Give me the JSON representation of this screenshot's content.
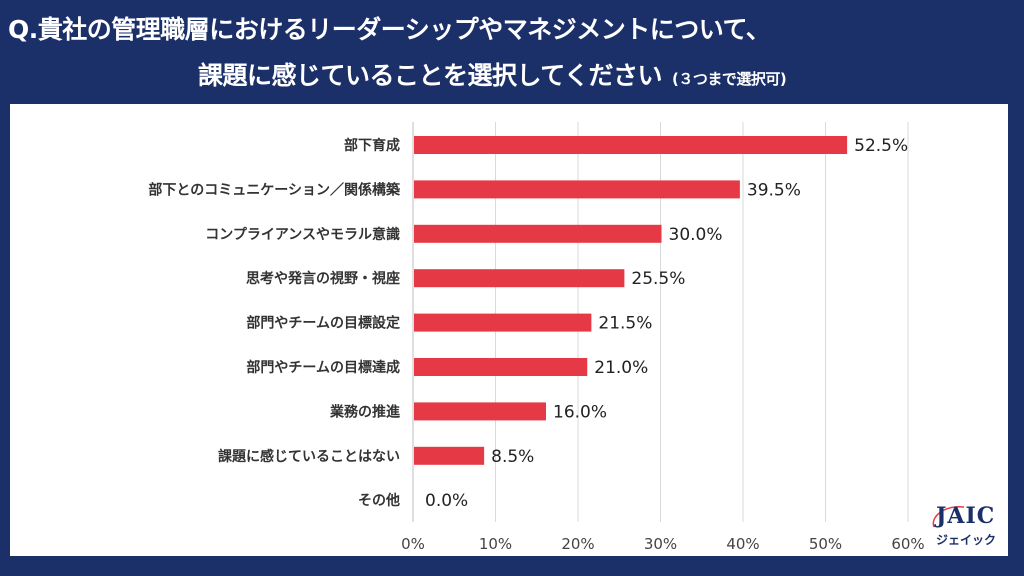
{
  "title_line1": "Q.貴社の管理職層におけるリーダーシップやマネジメントについて、",
  "title_line2": "課題に感じていることを選択してください",
  "title_note": "(３つまで選択可)",
  "logo": {
    "text": "JAIC",
    "kana": "ジェイック"
  },
  "colors": {
    "background": "#1b2f68",
    "bar": "#e63946",
    "grid": "#d9d9d9"
  },
  "chart_data": {
    "type": "bar",
    "orientation": "horizontal",
    "categories": [
      "部下育成",
      "部下とのコミュニケーション／関係構築",
      "コンプライアンスやモラル意識",
      "思考や発言の視野・視座",
      "部門やチームの目標設定",
      "部門やチームの目標達成",
      "業務の推進",
      "課題に感じていることはない",
      "その他"
    ],
    "values": [
      52.5,
      39.5,
      30.0,
      25.5,
      21.5,
      21.0,
      16.0,
      8.5,
      0.0
    ],
    "value_labels": [
      "52.5%",
      "39.5%",
      "30.0%",
      "25.5%",
      "21.5%",
      "21.0%",
      "16.0%",
      "8.5%",
      "0.0%"
    ],
    "xlim": [
      0,
      60
    ],
    "xticks": [
      "0%",
      "10%",
      "20%",
      "30%",
      "40%",
      "50%",
      "60%"
    ],
    "grid": true
  }
}
